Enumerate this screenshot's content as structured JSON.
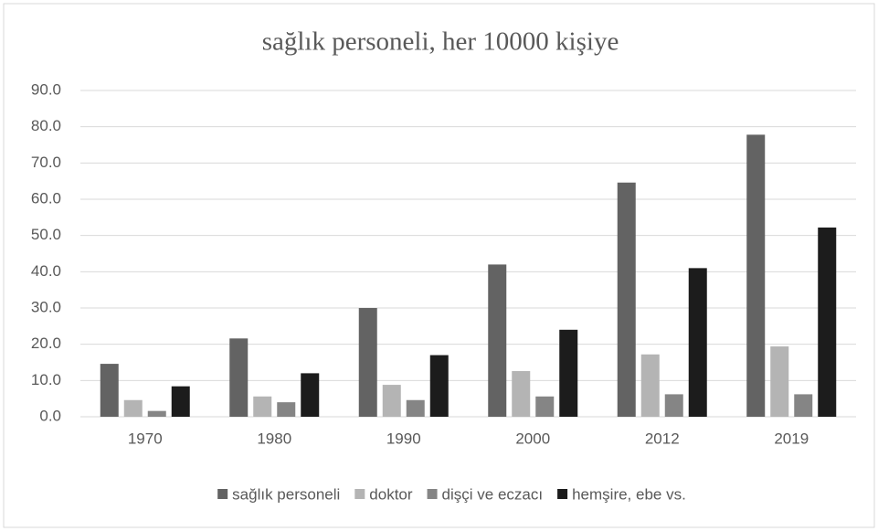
{
  "chart_data": {
    "type": "bar",
    "title": "sağlık personeli, her 10000 kişiye",
    "categories": [
      "1970",
      "1980",
      "1990",
      "2000",
      "2012",
      "2019"
    ],
    "series": [
      {
        "name": "sağlık personeli",
        "color": "#636363",
        "values": [
          14.6,
          21.6,
          30.0,
          42.0,
          64.6,
          77.8
        ]
      },
      {
        "name": "doktor",
        "color": "#b4b4b4",
        "values": [
          4.6,
          5.6,
          8.8,
          12.6,
          17.2,
          19.4
        ]
      },
      {
        "name": "dişçi ve eczacı",
        "color": "#858585",
        "values": [
          1.6,
          4.0,
          4.6,
          5.6,
          6.2,
          6.2
        ]
      },
      {
        "name": "hemşire, ebe vs.",
        "color": "#1c1c1c",
        "values": [
          8.4,
          12.0,
          17.0,
          24.0,
          41.0,
          52.2
        ]
      }
    ],
    "ylim": [
      0,
      90
    ],
    "yticks": [
      {
        "value": 0,
        "label": "0.0"
      },
      {
        "value": 10,
        "label": "10.0"
      },
      {
        "value": 20,
        "label": "20.0"
      },
      {
        "value": 30,
        "label": "30.0"
      },
      {
        "value": 40,
        "label": "40.0"
      },
      {
        "value": 50,
        "label": "50.0"
      },
      {
        "value": 60,
        "label": "60.0"
      },
      {
        "value": 70,
        "label": "70.0"
      },
      {
        "value": 80,
        "label": "80.0"
      },
      {
        "value": 90,
        "label": "90.0"
      }
    ],
    "grid": true,
    "legend": "bottom"
  }
}
